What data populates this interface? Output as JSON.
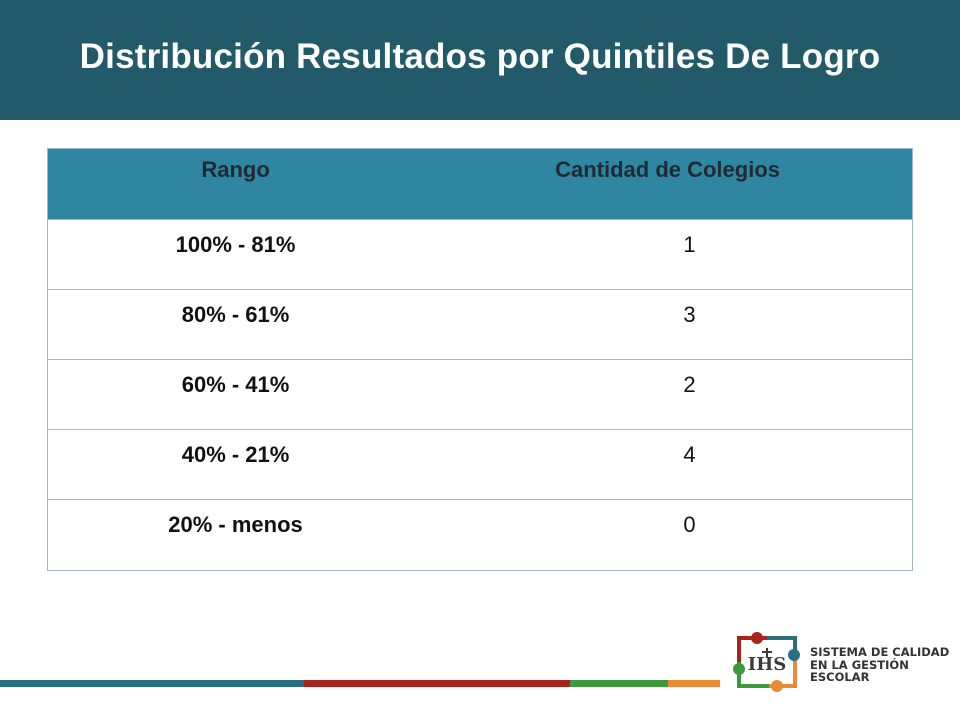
{
  "slide": {
    "title": "Distribución Resultados por Quintiles De Logro"
  },
  "table": {
    "headers": [
      "Rango",
      "Cantidad de Colegios"
    ],
    "rows": [
      {
        "range": "100% - 81%",
        "count": "1"
      },
      {
        "range": "80% - 61%",
        "count": "3"
      },
      {
        "range": "60% - 41%",
        "count": "2"
      },
      {
        "range": "40% - 21%",
        "count": "4"
      },
      {
        "range": "20% - menos",
        "count": "0"
      }
    ]
  },
  "logo": {
    "line1": "SISTEMA DE CALIDAD",
    "line2": "EN LA GESTIÓN",
    "line3": "ESCOLAR",
    "emblem_text": "IHS"
  },
  "colors": {
    "title_bar": "#235a6a",
    "table_header": "#2e86a1",
    "stripe_teal": "#2a6f80",
    "stripe_red": "#a8231c",
    "stripe_green": "#3c9a3c",
    "stripe_orange": "#ea8a36"
  }
}
